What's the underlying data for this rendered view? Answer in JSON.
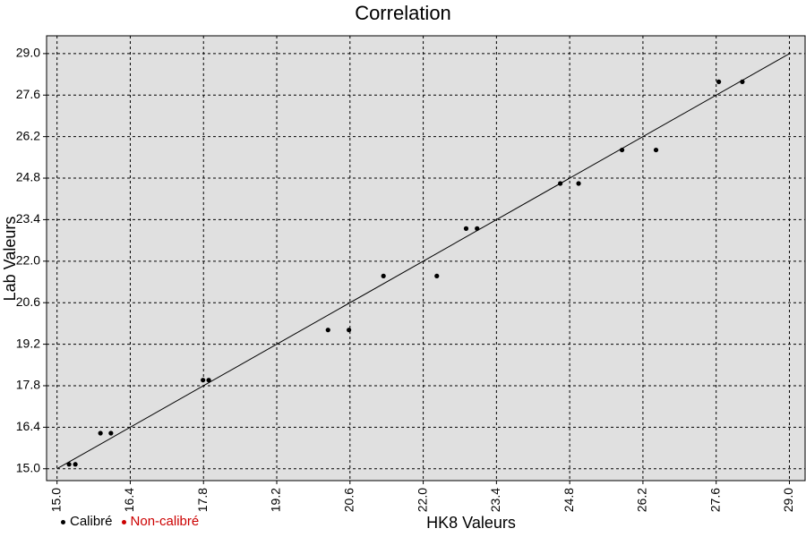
{
  "chart_data": {
    "type": "scatter",
    "title": "Correlation",
    "xlabel": "HK8 Valeurs",
    "ylabel": "Lab Valeurs",
    "xlim": [
      14.8,
      29.3
    ],
    "ylim": [
      14.6,
      29.6
    ],
    "xticks": [
      "15.0",
      "16.4",
      "17.8",
      "19.2",
      "20.6",
      "22.0",
      "23.4",
      "24.8",
      "26.2",
      "27.6",
      "29.0"
    ],
    "yticks": [
      "15.0",
      "16.4",
      "17.8",
      "19.2",
      "20.6",
      "22.0",
      "23.4",
      "24.8",
      "26.2",
      "27.6",
      "29.0"
    ],
    "grid": true,
    "legend_position": "bottom-left",
    "series": [
      {
        "name": "Calibré",
        "color": "#000000",
        "x": [
          15.23,
          15.35,
          15.83,
          16.03,
          17.79,
          17.9,
          20.18,
          20.58,
          21.24,
          22.26,
          22.82,
          23.03,
          24.62,
          24.97,
          25.8,
          26.45,
          27.65,
          28.1
        ],
        "y": [
          15.15,
          15.15,
          16.2,
          16.2,
          17.99,
          17.99,
          19.68,
          19.68,
          21.5,
          21.5,
          23.1,
          23.1,
          24.62,
          24.62,
          25.75,
          25.75,
          28.05,
          28.05
        ]
      },
      {
        "name": "Non-calibré",
        "color": "#cc0000",
        "x": [],
        "y": []
      }
    ],
    "fit_line": {
      "x": [
        15.0,
        29.0
      ],
      "y": [
        15.0,
        29.0
      ]
    },
    "colors": {
      "plot_background": "#e0e0e0",
      "grid": "#000000",
      "line": "#000000"
    }
  }
}
